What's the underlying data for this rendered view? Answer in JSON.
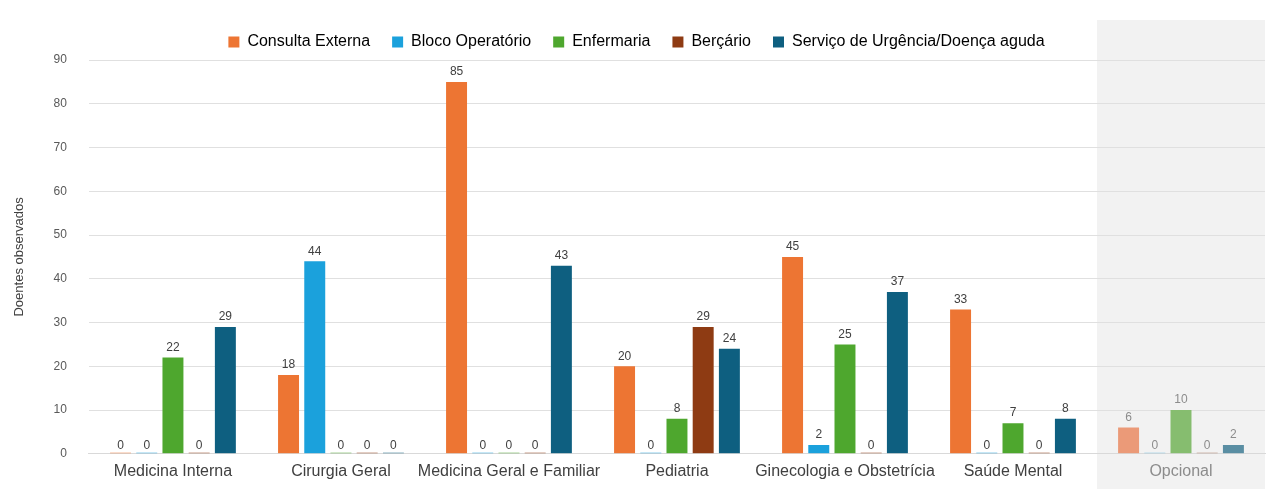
{
  "chart_data": {
    "type": "bar",
    "ylabel": "Doentes observados",
    "categories": [
      "Medicina Interna",
      "Cirurgia Geral",
      "Medicina Geral e Familiar",
      "Pediatria",
      "Ginecologia e Obstetrícia",
      "Saúde Mental",
      "Opcional"
    ],
    "series": [
      {
        "name": "Consulta Externa",
        "color": "#ed7533",
        "colors": [
          "#ed7533",
          "#ed7533",
          "#ed7533",
          "#ed7533",
          "#ed7533",
          "#ed7533",
          "#eb9a78"
        ],
        "values": [
          0,
          18,
          85,
          20,
          45,
          33,
          6
        ]
      },
      {
        "name": "Bloco Operatório",
        "color": "#1ba1dc",
        "colors": [
          "#1ba1dc",
          "#1ba1dc",
          "#1ba1dc",
          "#1ba1dc",
          "#1ba1dc",
          "#1ba1dc",
          "#7cc3e3"
        ],
        "values": [
          0,
          44,
          0,
          0,
          2,
          0,
          0
        ]
      },
      {
        "name": "Enfermaria",
        "color": "#4ea72e",
        "colors": [
          "#4ea72e",
          "#4ea72e",
          "#4ea72e",
          "#4ea72e",
          "#4ea72e",
          "#4ea72e",
          "#86bd6f"
        ],
        "values": [
          22,
          0,
          0,
          8,
          25,
          7,
          10
        ]
      },
      {
        "name": "Berçário",
        "color": "#8e3b13",
        "colors": [
          "#8e3b13",
          "#8e3b13",
          "#8e3b13",
          "#8e3b13",
          "#8e3b13",
          "#8e3b13",
          "#b0806a"
        ],
        "values": [
          0,
          0,
          0,
          29,
          0,
          0,
          0
        ]
      },
      {
        "name": "Serviço de Urgência/Doença aguda",
        "color": "#0e5f80",
        "colors": [
          "#0e5f80",
          "#0e5f80",
          "#0e5f80",
          "#0e5f80",
          "#0e5f80",
          "#0e5f80",
          "#5a8ea3"
        ],
        "values": [
          29,
          0,
          43,
          24,
          37,
          8,
          2
        ]
      }
    ],
    "ylim": [
      0,
      90
    ],
    "yticks": [
      0,
      10,
      20,
      30,
      40,
      50,
      60,
      70,
      80,
      90
    ],
    "grid": "y",
    "legend": "top",
    "data_labels": true,
    "bands": [
      {
        "axis": "x",
        "from": "Opcional",
        "to": "Opcional",
        "color": "#f2f2f2"
      }
    ]
  }
}
